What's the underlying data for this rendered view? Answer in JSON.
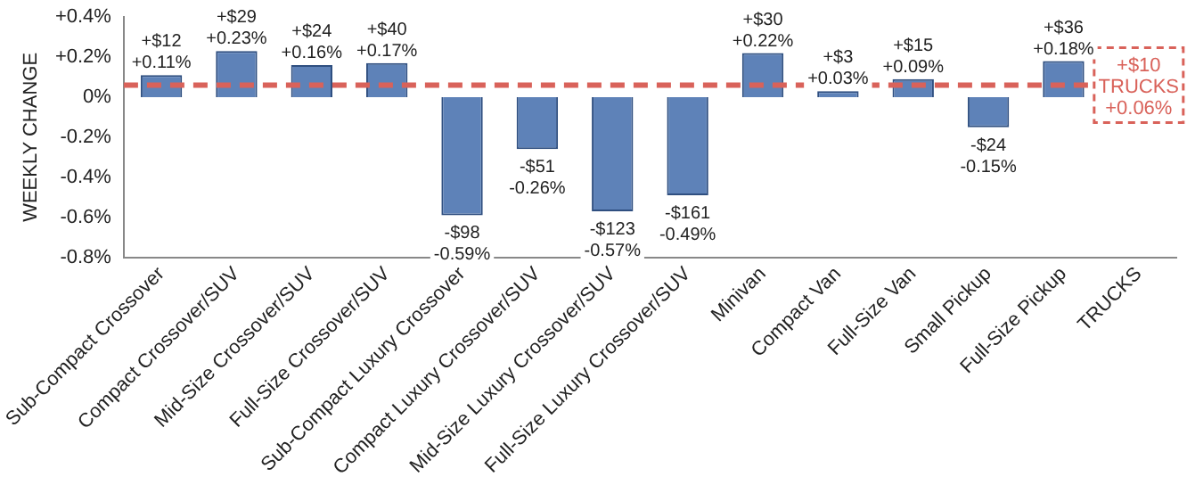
{
  "chart_data": {
    "type": "bar",
    "ylabel": "WEEKLY CHANGE",
    "categories": [
      "Sub-Compact Crossover",
      "Compact Crossover/SUV",
      "Mid-Size Crossover/SUV",
      "Full-Size Crossover/SUV",
      "Sub-Compact Luxury Crossover",
      "Compact Luxury Crossover/SUV",
      "Mid-Size Luxury Crossover/SUV",
      "Full-Size Luxury Crossover/SUV",
      "Minivan",
      "Compact Van",
      "Full-Size Van",
      "Small Pickup",
      "Full-Size Pickup",
      "TRUCKS"
    ],
    "values": [
      0.11,
      0.23,
      0.16,
      0.17,
      -0.59,
      -0.26,
      -0.57,
      -0.49,
      0.22,
      0.03,
      0.09,
      -0.15,
      0.18,
      null
    ],
    "value_labels": [
      "+$12\n+0.11%",
      "+$29\n+0.23%",
      "+$24\n+0.16%",
      "+$40\n+0.17%",
      "-$98\n-0.59%",
      "-$51\n-0.26%",
      "-$123\n-0.57%",
      "-$161\n-0.49%",
      "+$30\n+0.22%",
      "+$3\n+0.03%",
      "+$15\n+0.09%",
      "-$24\n-0.15%",
      "+$36\n+0.18%",
      null
    ],
    "color": "#5e82b8",
    "ylim": [
      -0.8,
      0.4
    ],
    "yticks": [
      {
        "value": 0.4,
        "label": "+0.4%"
      },
      {
        "value": 0.2,
        "label": "+0.2%"
      },
      {
        "value": 0,
        "label": "0%"
      },
      {
        "value": -0.2,
        "label": "-0.2%"
      },
      {
        "value": -0.4,
        "label": "-0.4%"
      },
      {
        "value": -0.6,
        "label": "-0.6%"
      },
      {
        "value": -0.8,
        "label": "-0.8%"
      }
    ],
    "grid": false,
    "legend": false,
    "ref_lines": [
      {
        "axis": "y",
        "value": 0.06,
        "label": "+$10\nTRUCKS\n+0.06%",
        "color": "#d9625a",
        "line_style": "dashed"
      }
    ]
  }
}
